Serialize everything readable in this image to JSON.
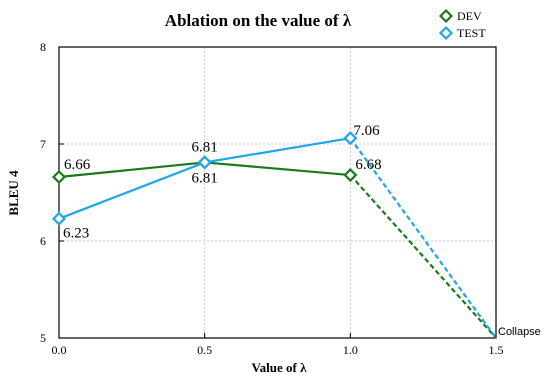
{
  "chart_data": {
    "type": "line",
    "title": "Ablation on the value of λ",
    "xlabel": "Value of λ",
    "ylabel": "BLEU 4",
    "xlim": [
      0.0,
      1.5
    ],
    "ylim": [
      5,
      8
    ],
    "x_ticks": [
      "0.0",
      "0.5",
      "1.0",
      "1.5"
    ],
    "y_ticks": [
      "5",
      "6",
      "7",
      "8"
    ],
    "grid": true,
    "legend_position": "top-right",
    "series": [
      {
        "name": "DEV",
        "color": "#1a7a1a",
        "x": [
          0.0,
          0.5,
          1.0,
          1.5
        ],
        "y": [
          6.66,
          6.81,
          6.68,
          5.0
        ],
        "labels": [
          "6.66",
          "6.81",
          "6.68",
          ""
        ],
        "dashed_last_segment": true
      },
      {
        "name": "TEST",
        "color": "#1ea6ea",
        "x": [
          0.0,
          0.5,
          1.0,
          1.5
        ],
        "y": [
          6.23,
          6.81,
          7.06,
          5.0
        ],
        "labels": [
          "6.23",
          "6.81",
          "7.06",
          ""
        ],
        "dashed_last_segment": true
      }
    ],
    "annotations": [
      {
        "text": "Collapse",
        "x": 1.5,
        "y": 5.0
      }
    ]
  }
}
